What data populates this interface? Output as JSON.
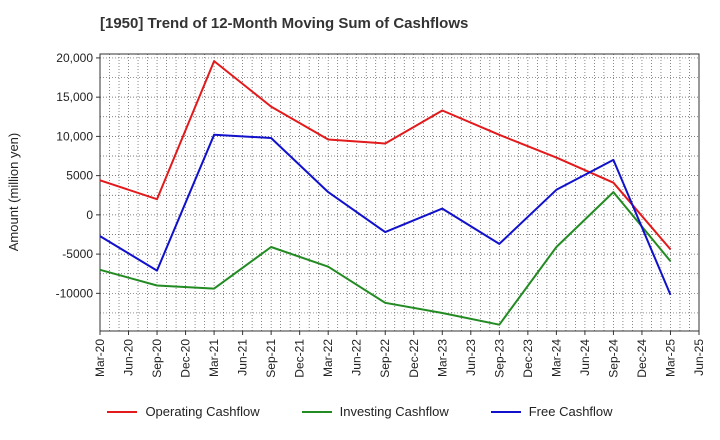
{
  "title": "[1950]  Trend of 12-Month Moving Sum of Cashflows",
  "chart_data": {
    "type": "line",
    "title": "[1950]  Trend of 12-Month Moving Sum of Cashflows",
    "ylabel": "Amount (million yen)",
    "xlabel": "",
    "x": [
      "Mar-20",
      "Jun-20",
      "Sep-20",
      "Dec-20",
      "Mar-21",
      "Jun-21",
      "Sep-21",
      "Dec-21",
      "Mar-22",
      "Jun-22",
      "Sep-22",
      "Dec-22",
      "Mar-23",
      "Jun-23",
      "Sep-23",
      "Dec-23",
      "Mar-24",
      "Jun-24",
      "Sep-24",
      "Dec-24",
      "Mar-25",
      "Jun-25"
    ],
    "y_ticks": [
      20000,
      15000,
      10000,
      5000,
      0,
      -5000,
      -10000
    ],
    "y_tick_labels": [
      "20,000",
      "15,000",
      "10,000",
      "5000",
      "0",
      "-5000",
      "-10000"
    ],
    "ylim": [
      -14800,
      20500
    ],
    "grid": true,
    "legend_position": "bottom",
    "series": [
      {
        "name": "Operating Cashflow",
        "color": "#e31a1c",
        "points": [
          [
            "Mar-20",
            4400
          ],
          [
            "Sep-20",
            2000
          ],
          [
            "Mar-21",
            19600
          ],
          [
            "Sep-21",
            13800
          ],
          [
            "Mar-22",
            9600
          ],
          [
            "Sep-22",
            9100
          ],
          [
            "Mar-23",
            13300
          ],
          [
            "Sep-23",
            10200
          ],
          [
            "Mar-24",
            7300
          ],
          [
            "Sep-24",
            4100
          ],
          [
            "Mar-25",
            -4400
          ]
        ]
      },
      {
        "name": "Investing Cashflow",
        "color": "#228b22",
        "points": [
          [
            "Mar-20",
            -7000
          ],
          [
            "Sep-20",
            -9000
          ],
          [
            "Mar-21",
            -9400
          ],
          [
            "Sep-21",
            -4100
          ],
          [
            "Mar-22",
            -6600
          ],
          [
            "Sep-22",
            -11200
          ],
          [
            "Mar-23",
            -12500
          ],
          [
            "Sep-23",
            -14000
          ],
          [
            "Mar-24",
            -4100
          ],
          [
            "Sep-24",
            2900
          ],
          [
            "Mar-25",
            -5900
          ]
        ]
      },
      {
        "name": "Free Cashflow",
        "color": "#1111cc",
        "points": [
          [
            "Mar-20",
            -2700
          ],
          [
            "Sep-20",
            -7100
          ],
          [
            "Mar-21",
            10200
          ],
          [
            "Sep-21",
            9800
          ],
          [
            "Mar-22",
            2900
          ],
          [
            "Sep-22",
            -2200
          ],
          [
            "Mar-23",
            800
          ],
          [
            "Sep-23",
            -3700
          ],
          [
            "Mar-24",
            3200
          ],
          [
            "Sep-24",
            7000
          ],
          [
            "Mar-25",
            -10200
          ]
        ]
      }
    ]
  }
}
